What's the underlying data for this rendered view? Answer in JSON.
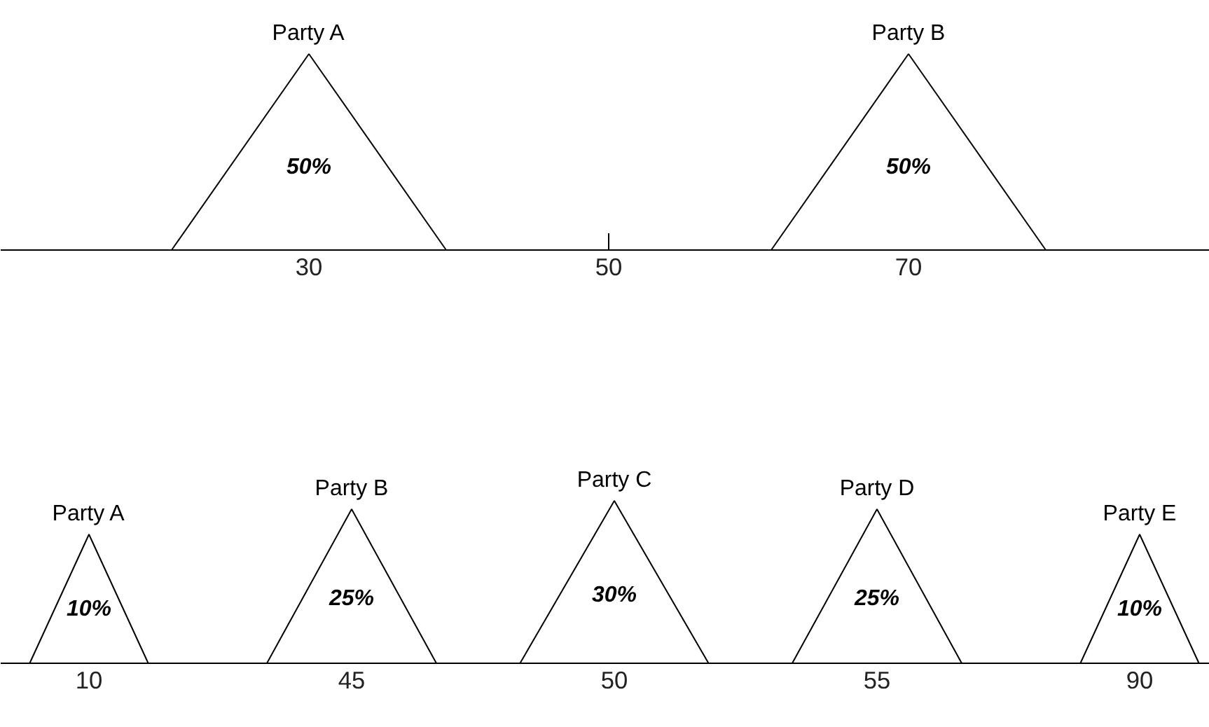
{
  "chart_data": [
    {
      "type": "other",
      "categories": [
        "Party A",
        "Party B"
      ],
      "values": [
        50,
        50
      ],
      "value_labels": [
        "50%",
        "50%"
      ],
      "annotations": [
        "30",
        "50",
        "70"
      ]
    },
    {
      "type": "other",
      "categories": [
        "Party A",
        "Party B",
        "Party C",
        "Party D",
        "Party E"
      ],
      "values": [
        10,
        25,
        30,
        25,
        10
      ],
      "value_labels": [
        "10%",
        "25%",
        "30%",
        "25%",
        "10%"
      ],
      "annotations": [
        "10",
        "45",
        "50",
        "55",
        "90"
      ]
    }
  ]
}
